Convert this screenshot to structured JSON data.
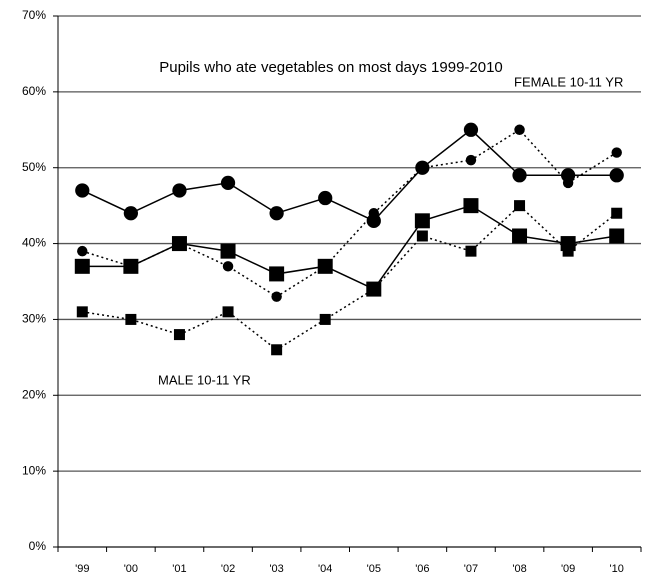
{
  "chart_data": {
    "type": "line",
    "title": "Pupils who ate vegetables on most days 1999-2010",
    "annotations": [
      "FEMALE 10-11 YR",
      "MALE 10-11 YR"
    ],
    "categories": [
      "'99",
      "'00",
      "'01",
      "'02",
      "'03",
      "'04",
      "'05",
      "'06",
      "'07",
      "'08",
      "'09",
      "'10"
    ],
    "series": [
      {
        "color": "#000000",
        "marker": "circle",
        "marker_size": "large",
        "line_style": "solid",
        "values": [
          47,
          44,
          47,
          48,
          44,
          46,
          43,
          50,
          55,
          49,
          49,
          49
        ]
      },
      {
        "color": "#000000",
        "marker": "circle",
        "marker_size": "small",
        "line_style": "dotted",
        "values": [
          39,
          37,
          40,
          37,
          33,
          37,
          44,
          50,
          51,
          55,
          48,
          52
        ]
      },
      {
        "color": "#000000",
        "marker": "square",
        "marker_size": "large",
        "line_style": "solid",
        "values": [
          37,
          37,
          40,
          39,
          36,
          37,
          34,
          43,
          45,
          41,
          40,
          41
        ]
      },
      {
        "color": "#000000",
        "marker": "square",
        "marker_size": "small",
        "line_style": "dotted",
        "values": [
          31,
          30,
          28,
          31,
          26,
          30,
          34,
          41,
          39,
          45,
          39,
          44
        ]
      }
    ],
    "ylim": [
      0,
      70
    ],
    "yticks": [
      {
        "value": 0,
        "label": "0%"
      },
      {
        "value": 10,
        "label": "10%"
      },
      {
        "value": 20,
        "label": "20%"
      },
      {
        "value": 30,
        "label": "30%"
      },
      {
        "value": 40,
        "label": "40%"
      },
      {
        "value": 50,
        "label": "50%"
      },
      {
        "value": 60,
        "label": "60%"
      },
      {
        "value": 70,
        "label": "70%"
      }
    ],
    "grid": true
  }
}
